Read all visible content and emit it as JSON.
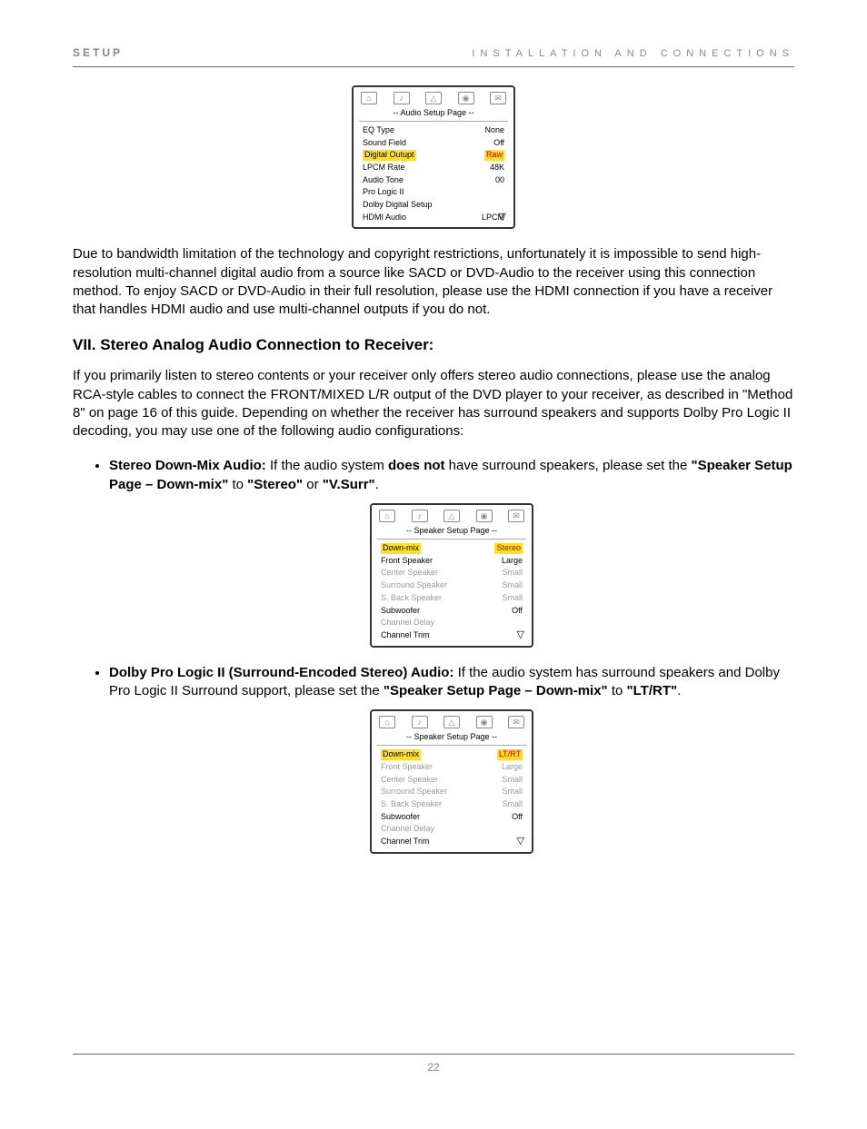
{
  "header": {
    "label_left": "SETUP",
    "label_right": "INSTALLATION AND CONNECTIONS"
  },
  "panel1": {
    "title": "-- Audio Setup Page --",
    "rows": [
      {
        "label": "EQ Type",
        "value": "None",
        "highlight": false,
        "dim": false
      },
      {
        "label": "Sound Field",
        "value": "Off",
        "highlight": false,
        "dim": false
      },
      {
        "label": "Digital Outupt",
        "value": "Raw",
        "highlight": true,
        "dim": false
      },
      {
        "label": "LPCM Rate",
        "value": "48K",
        "highlight": false,
        "dim": false
      },
      {
        "label": "Audio Tone",
        "value": "00",
        "highlight": false,
        "dim": false
      },
      {
        "label": "Pro Logic II",
        "value": "",
        "highlight": false,
        "dim": false
      },
      {
        "label": "Dolby Digital Setup",
        "value": "",
        "highlight": false,
        "dim": false
      },
      {
        "label": "HDMI Audio",
        "value": "LPCM",
        "highlight": false,
        "dim": false
      }
    ]
  },
  "para1": "Due to bandwidth limitation of the technology and copyright restrictions, unfortunately it is impossible to send high-resolution multi-channel digital audio from a source like SACD or DVD-Audio to the receiver using this connection method.  To enjoy SACD or DVD-Audio in their full resolution, please use the HDMI connection if you have a receiver that handles HDMI audio and use multi-channel outputs if you do not.",
  "section_head": "VII. Stereo Analog Audio Connection to Receiver:",
  "para2": "If you primarily listen to stereo contents or your receiver only offers stereo audio connections, please use the analog RCA-style cables to connect the FRONT/MIXED L/R output of the DVD player to your receiver, as described in \"Method 8\" on page 16 of this guide.  Depending on whether the receiver has surround speakers and supports Dolby Pro Logic II decoding, you may use one of the following audio configurations:",
  "bullet1": {
    "lead_bold": "Stereo Down-Mix Audio:",
    "t1": " If the audio system ",
    "not_bold": "does not",
    "t2": " have surround speakers, please set the ",
    "label_bold1": "\"Speaker Setup Page – Down-mix\"",
    "t3": " to ",
    "val_bold1": "\"Stereo\"",
    "t4": " or ",
    "val_bold2": "\"V.Surr\"",
    "t5": "."
  },
  "panel2": {
    "title": "-- Speaker Setup Page --",
    "rows": [
      {
        "label": "Down-mix",
        "value": "Stereo",
        "highlight": true,
        "dim": false
      },
      {
        "label": "Front Speaker",
        "value": "Large",
        "highlight": false,
        "dim": false
      },
      {
        "label": "Center Speaker",
        "value": "Small",
        "highlight": false,
        "dim": true
      },
      {
        "label": "Surround Speaker",
        "value": "Small",
        "highlight": false,
        "dim": true
      },
      {
        "label": "S. Back Speaker",
        "value": "Small",
        "highlight": false,
        "dim": true
      },
      {
        "label": "Subwoofer",
        "value": "Off",
        "highlight": false,
        "dim": false
      },
      {
        "label": "Channel Delay",
        "value": "",
        "highlight": false,
        "dim": true
      },
      {
        "label": "Channel Trim",
        "value": "",
        "highlight": false,
        "dim": false
      }
    ]
  },
  "bullet2": {
    "lead_bold": "Dolby Pro Logic II (Surround-Encoded Stereo) Audio:",
    "t1": " If the audio system has surround speakers and Dolby Pro Logic II Surround support, please set the ",
    "label_bold1": "\"Speaker Setup Page – Down-mix\"",
    "t2": " to ",
    "val_bold1": "\"LT/RT\"",
    "t3": "."
  },
  "panel3": {
    "title": "-- Speaker Setup Page --",
    "rows": [
      {
        "label": "Down-mix",
        "value": "LT/RT",
        "highlight": true,
        "dim": false
      },
      {
        "label": "Front Speaker",
        "value": "Large",
        "highlight": false,
        "dim": true
      },
      {
        "label": "Center Speaker",
        "value": "Small",
        "highlight": false,
        "dim": true
      },
      {
        "label": "Surround Speaker",
        "value": "Small",
        "highlight": false,
        "dim": true
      },
      {
        "label": "S. Back Speaker",
        "value": "Small",
        "highlight": false,
        "dim": true
      },
      {
        "label": "Subwoofer",
        "value": "Off",
        "highlight": false,
        "dim": false
      },
      {
        "label": "Channel Delay",
        "value": "",
        "highlight": false,
        "dim": true
      },
      {
        "label": "Channel Trim",
        "value": "",
        "highlight": false,
        "dim": false
      }
    ]
  },
  "footer_page": "22",
  "colors": {
    "highlight_bg": "#ffde2f",
    "highlight_value_fg": "#c00",
    "dim_fg": "#999",
    "header_fg": "#888"
  },
  "tab_icons": [
    "⌂",
    "♪",
    "△",
    "◉",
    "✉"
  ]
}
